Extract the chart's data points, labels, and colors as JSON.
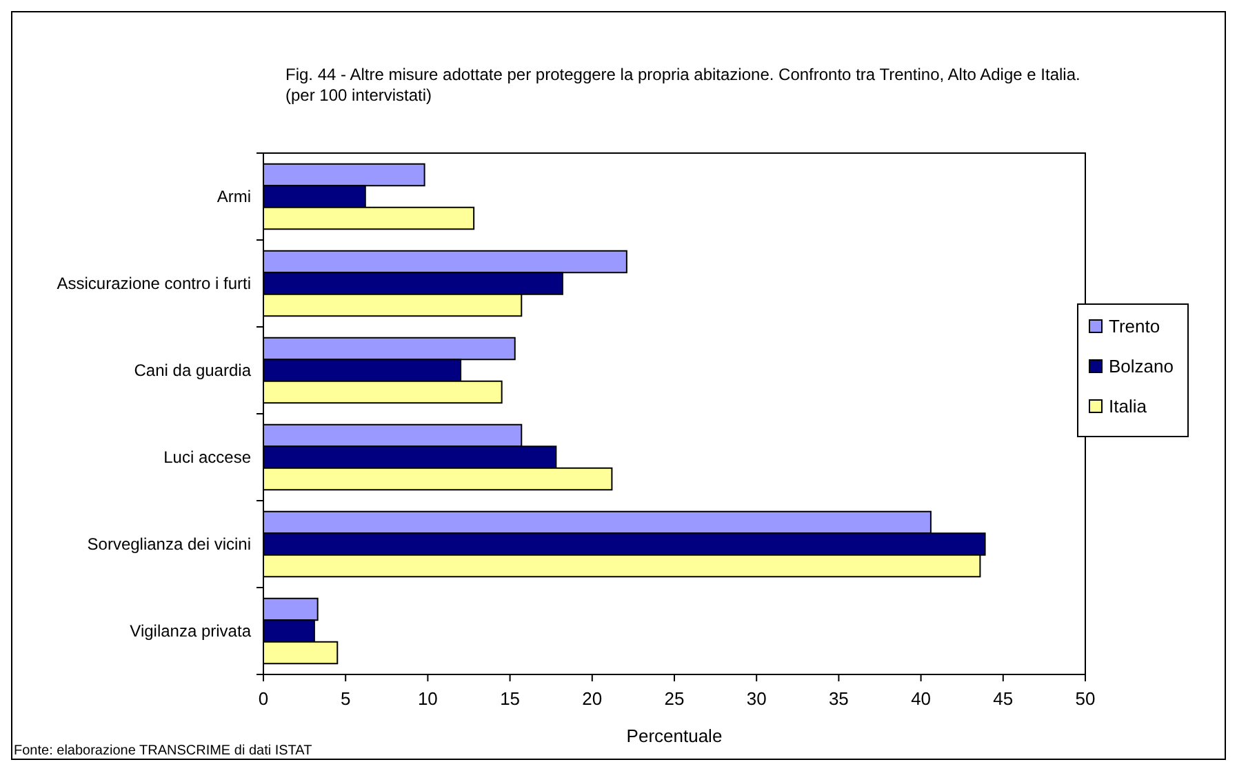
{
  "chart_data": {
    "type": "bar",
    "orientation": "horizontal",
    "title": "Fig. 44 - Altre misure adottate per proteggere la propria abitazione. Confronto tra Trentino, Alto Adige e Italia. (per 100 intervistati)",
    "xlabel": "Percentuale",
    "categories": [
      "Armi",
      "Assicurazione contro i furti",
      "Cani da guardia",
      "Luci accese",
      "Sorveglianza dei vicini",
      "Vigilanza privata"
    ],
    "series": [
      {
        "name": "Trento",
        "color": "#9999ff",
        "values": [
          9.8,
          22.1,
          15.3,
          15.7,
          40.6,
          3.3
        ]
      },
      {
        "name": "Bolzano",
        "color": "#000080",
        "values": [
          6.2,
          18.2,
          12.0,
          17.8,
          43.9,
          3.1
        ]
      },
      {
        "name": "Italia",
        "color": "#ffff99",
        "values": [
          12.8,
          15.7,
          14.5,
          21.2,
          43.6,
          4.5
        ]
      }
    ],
    "xlim": [
      0,
      50
    ],
    "xticks": [
      0,
      5,
      10,
      15,
      20,
      25,
      30,
      35,
      40,
      45,
      50
    ],
    "grid": false,
    "legend": "right",
    "annotations": [
      "Fonte: elaborazione TRANSCRIME di dati ISTAT"
    ]
  }
}
